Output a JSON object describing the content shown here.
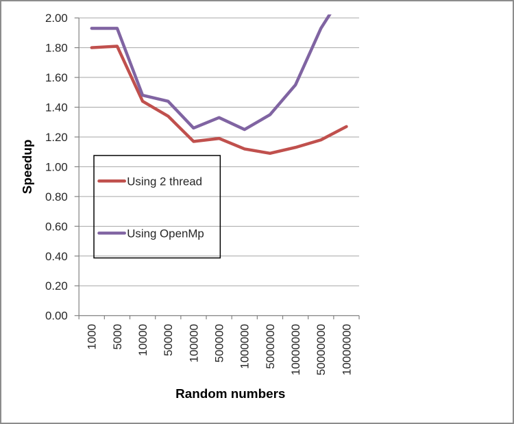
{
  "chart_data": {
    "type": "line",
    "title": "",
    "xlabel": "Random numbers",
    "ylabel": "Speedup",
    "categories": [
      "1000",
      "5000",
      "10000",
      "50000",
      "100000",
      "500000",
      "1000000",
      "5000000",
      "10000000",
      "50000000",
      "10000000"
    ],
    "series": [
      {
        "name": "Using 2 thread",
        "color": "#C0504D",
        "values": [
          1.8,
          1.81,
          1.44,
          1.34,
          1.17,
          1.19,
          1.12,
          1.09,
          1.13,
          1.18,
          1.27
        ]
      },
      {
        "name": "Using OpenMp",
        "color": "#8064A2",
        "values": [
          1.93,
          1.93,
          1.48,
          1.44,
          1.26,
          1.33,
          1.25,
          1.35,
          1.55,
          1.93,
          2.2
        ]
      }
    ],
    "ylim": [
      0,
      2
    ],
    "ytick_step": 0.2,
    "ytick_decimals": 2,
    "grid": true,
    "x_labels_rotated_90": true,
    "series_clipped_to_plot_area": true,
    "legend_position": "inside-plot-left",
    "legend_border": true,
    "legend_fill_transparent": true
  },
  "colors": {
    "frame_border": "#8c8c8c",
    "gridline": "#a6a6a6",
    "axis_line": "#808080",
    "tick_label_text": "#262626",
    "legend_text": "#262626",
    "axis_title_text": "#000000",
    "legend_border": "#000000",
    "background": "#ffffff",
    "series_red": "#C0504D",
    "series_purple": "#8064A2"
  }
}
